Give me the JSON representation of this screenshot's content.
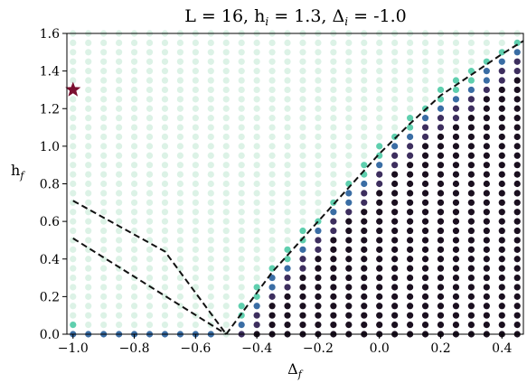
{
  "chart_data": {
    "type": "scatter",
    "title_parts": {
      "L": "L = 16, h",
      "hi_sub": "i",
      "mid": " = 1.3, Δ",
      "di_sub": "i",
      "end": " = -1.0"
    },
    "xlabel_main": "Δ",
    "xlabel_sub": "f",
    "ylabel_main": "h",
    "ylabel_sub": "f",
    "xlim": [
      -1.02,
      0.47
    ],
    "ylim": [
      0.0,
      1.6
    ],
    "xticks": [
      -1.0,
      -0.8,
      -0.6,
      -0.4,
      -0.2,
      0.0,
      0.2,
      0.4
    ],
    "xtick_labels": [
      "−1.0",
      "−0.8",
      "−0.6",
      "−0.4",
      "−0.2",
      "0.0",
      "0.2",
      "0.4"
    ],
    "yticks": [
      0.0,
      0.2,
      0.4,
      0.6,
      0.8,
      1.0,
      1.2,
      1.4,
      1.6
    ],
    "ytick_labels": [
      "0.0",
      "0.2",
      "0.4",
      "0.6",
      "0.8",
      "1.0",
      "1.2",
      "1.4",
      "1.6"
    ],
    "grid": {
      "x_start": -1.0,
      "x_step": 0.05,
      "x_count": 30,
      "y_start": 0.0,
      "y_step": 0.05,
      "y_count": 33
    },
    "colors": {
      "faint": "#dcf2e6",
      "teal": "#5fcfae",
      "blue": "#3a6da4",
      "purple": "#3d2e5e",
      "dark": "#1a0f1f",
      "star": "#7a1030",
      "boundary": "#111111"
    },
    "marker": {
      "x": -1.0,
      "y": 1.3,
      "shape": "star"
    },
    "boundary_curve": [
      [
        -0.5,
        0.0
      ],
      [
        -0.45,
        0.11
      ],
      [
        -0.4,
        0.22
      ],
      [
        -0.35,
        0.33
      ],
      [
        -0.3,
        0.42
      ],
      [
        -0.25,
        0.51
      ],
      [
        -0.2,
        0.6
      ],
      [
        -0.1,
        0.78
      ],
      [
        0.0,
        0.96
      ],
      [
        0.1,
        1.12
      ],
      [
        0.2,
        1.27
      ],
      [
        0.3,
        1.38
      ],
      [
        0.4,
        1.49
      ],
      [
        0.47,
        1.56
      ]
    ],
    "dashed_line_upper": [
      [
        -1.0,
        0.71
      ],
      [
        -0.7,
        0.44
      ],
      [
        -0.5,
        0.0
      ]
    ],
    "dashed_line_lower": [
      [
        -1.0,
        0.51
      ],
      [
        -0.5,
        0.0
      ]
    ]
  }
}
